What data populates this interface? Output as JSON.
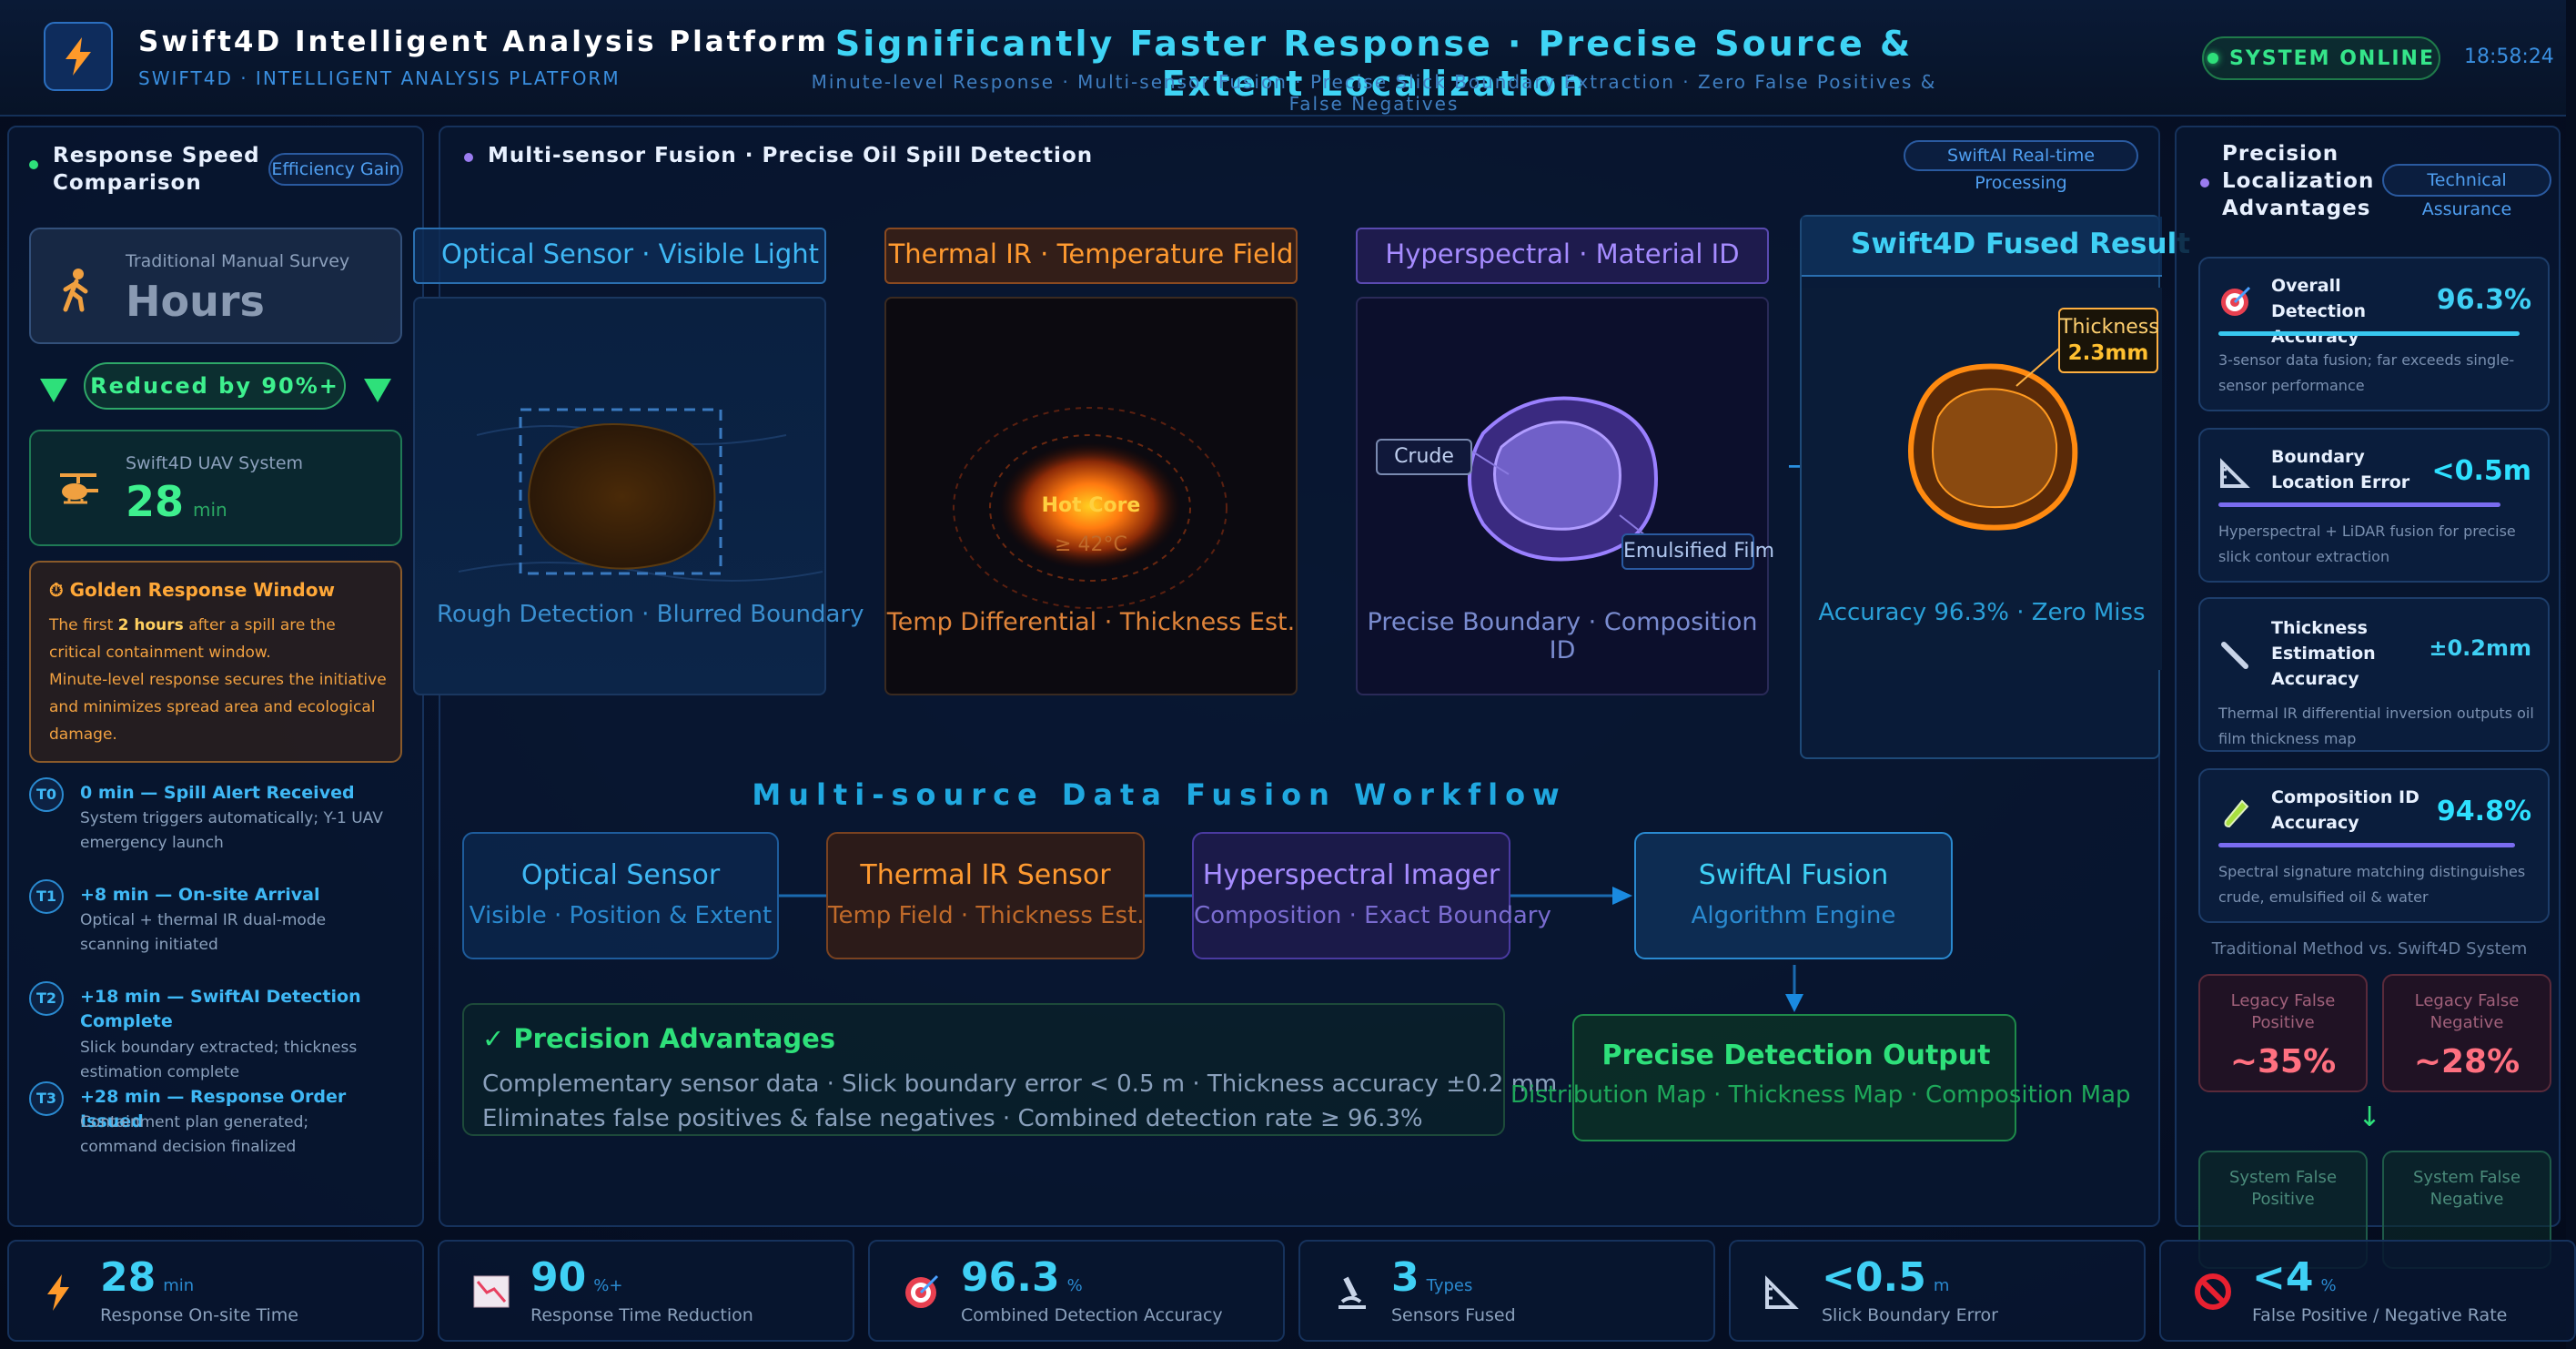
{
  "header": {
    "title": "Swift4D Intelligent Analysis Platform",
    "subtitle": "SWIFT4D · INTELLIGENT ANALYSIS PLATFORM",
    "headline": "Significantly Faster Response · Precise Source & Extent Localization",
    "tagline": "Minute-level Response · Multi-sensor Fusion · Precise Slick Boundary Extraction · Zero False Positives & False Negatives",
    "status": "SYSTEM ONLINE",
    "time": "18:58:24"
  },
  "left": {
    "title_line1": "Response Speed",
    "title_line2": "Comparison",
    "tag": "Efficiency Gain",
    "traditional": {
      "label": "Traditional Manual Survey",
      "value": "Hours"
    },
    "reduced": "Reduced by 90%+",
    "uav": {
      "label": "Swift4D UAV System",
      "value": "28",
      "unit": "min"
    },
    "golden": {
      "title": "Golden Response Window",
      "p1": "The first",
      "p1_bold": "2 hours",
      "p1_rest": "after a spill are the critical containment window.",
      "p2": "Minute-level response secures the initiative and minimizes spread area and ecological damage."
    },
    "timeline": [
      {
        "badge": "T0",
        "title": "0 min — Spill Alert Received",
        "desc": "System triggers automatically; Y-1 UAV emergency launch"
      },
      {
        "badge": "T1",
        "title": "+8 min — On-site Arrival",
        "desc": "Optical + thermal IR dual-mode scanning initiated"
      },
      {
        "badge": "T2",
        "title": "+18 min — SwiftAI Detection Complete",
        "desc": "Slick boundary extracted; thickness estimation complete"
      },
      {
        "badge": "T3",
        "title": "+28 min — Response Order Issued",
        "desc": "Containment plan generated; command decision finalized"
      }
    ]
  },
  "center": {
    "title": "Multi-sensor Fusion · Precise Oil Spill Detection",
    "tag": "SwiftAI Real-time Processing",
    "sensors": [
      {
        "title": "Optical Sensor · Visible Light",
        "caption": "Rough Detection · Blurred Boundary"
      },
      {
        "title": "Thermal IR · Temperature Field",
        "caption": "Temp Differential · Thickness Est.",
        "core": "Hot Core",
        "temp": "≥ 42°C"
      },
      {
        "title": "Hyperspectral · Material ID",
        "caption": "Precise Boundary · Composition ID",
        "crude": "Crude",
        "emulsified": "Emulsified Film"
      },
      {
        "title": "Swift4D Fused Result",
        "caption": "Accuracy 96.3% · Zero Miss",
        "thickness_label": "Thickness",
        "thickness_value": "2.3mm"
      }
    ],
    "arrow": "→",
    "workflow_title": "Multi-source Data Fusion Workflow",
    "workflow": [
      {
        "title": "Optical Sensor",
        "sub": "Visible · Position & Extent"
      },
      {
        "title": "Thermal IR Sensor",
        "sub": "Temp Field · Thickness Est."
      },
      {
        "title": "Hyperspectral Imager",
        "sub": "Composition · Exact Boundary"
      },
      {
        "title": "SwiftAI Fusion",
        "sub": "Algorithm Engine"
      }
    ],
    "output": {
      "title": "Precise Detection Output",
      "sub": "Distribution Map · Thickness Map · Composition Map"
    },
    "advantages": {
      "title": "✓ Precision Advantages",
      "line1": "Complementary sensor data · Slick boundary error < 0.5 m · Thickness accuracy ±0.2 mm",
      "line2": "Eliminates false positives & false negatives · Combined detection rate ≥ 96.3%"
    }
  },
  "right": {
    "title_line1": "Precision",
    "title_line2": "Localization",
    "title_line3": "Advantages",
    "tag": "Technical Assurance",
    "metrics": [
      {
        "icon": "target-icon",
        "title": "Overall Detection Accuracy",
        "value": "96.3%",
        "desc": "3-sensor data fusion; far exceeds single-sensor performance",
        "fill": 0.963,
        "color": "#38c8f0"
      },
      {
        "icon": "ruler-icon",
        "title": "Boundary Location Error",
        "value": "<0.5m",
        "desc": "Hyperspectral + LiDAR fusion for precise slick contour extraction",
        "fill": 0.9,
        "color": "#7a6cf0"
      },
      {
        "icon": "needle-icon",
        "title": "Thickness Estimation Accuracy",
        "value": "±0.2mm",
        "desc": "Thermal IR differential inversion outputs oil film thickness map",
        "fill": 0,
        "color": "#38c8f0"
      },
      {
        "icon": "test-tube-icon",
        "title": "Composition ID Accuracy",
        "value": "94.8%",
        "desc": "Spectral signature matching distinguishes crude, emulsified oil & water",
        "fill": 0.948,
        "color": "#7a6cf0"
      }
    ],
    "compare_title": "Traditional Method vs. Swift4D System",
    "legacy": [
      {
        "label": "Legacy False Positive",
        "value": "~35%"
      },
      {
        "label": "Legacy False Negative",
        "value": "~28%"
      }
    ],
    "down_arrow": "↓",
    "system": [
      {
        "label": "System False Positive"
      },
      {
        "label": "System False Negative"
      }
    ]
  },
  "footer": [
    {
      "icon": "bolt-icon",
      "value": "28",
      "unit": "min",
      "label": "Response On-site Time"
    },
    {
      "icon": "chart-down-icon",
      "value": "90",
      "unit": "%+",
      "label": "Response Time Reduction"
    },
    {
      "icon": "target-icon",
      "value": "96.3",
      "unit": "%",
      "label": "Combined Detection Accuracy"
    },
    {
      "icon": "microscope-icon",
      "value": "3",
      "unit": "Types",
      "label": "Sensors Fused"
    },
    {
      "icon": "ruler-icon",
      "value": "<0.5",
      "unit": "m",
      "label": "Slick Boundary Error"
    },
    {
      "icon": "prohibited-icon",
      "value": "<4",
      "unit": "%",
      "label": "False Positive / Negative Rate"
    }
  ]
}
